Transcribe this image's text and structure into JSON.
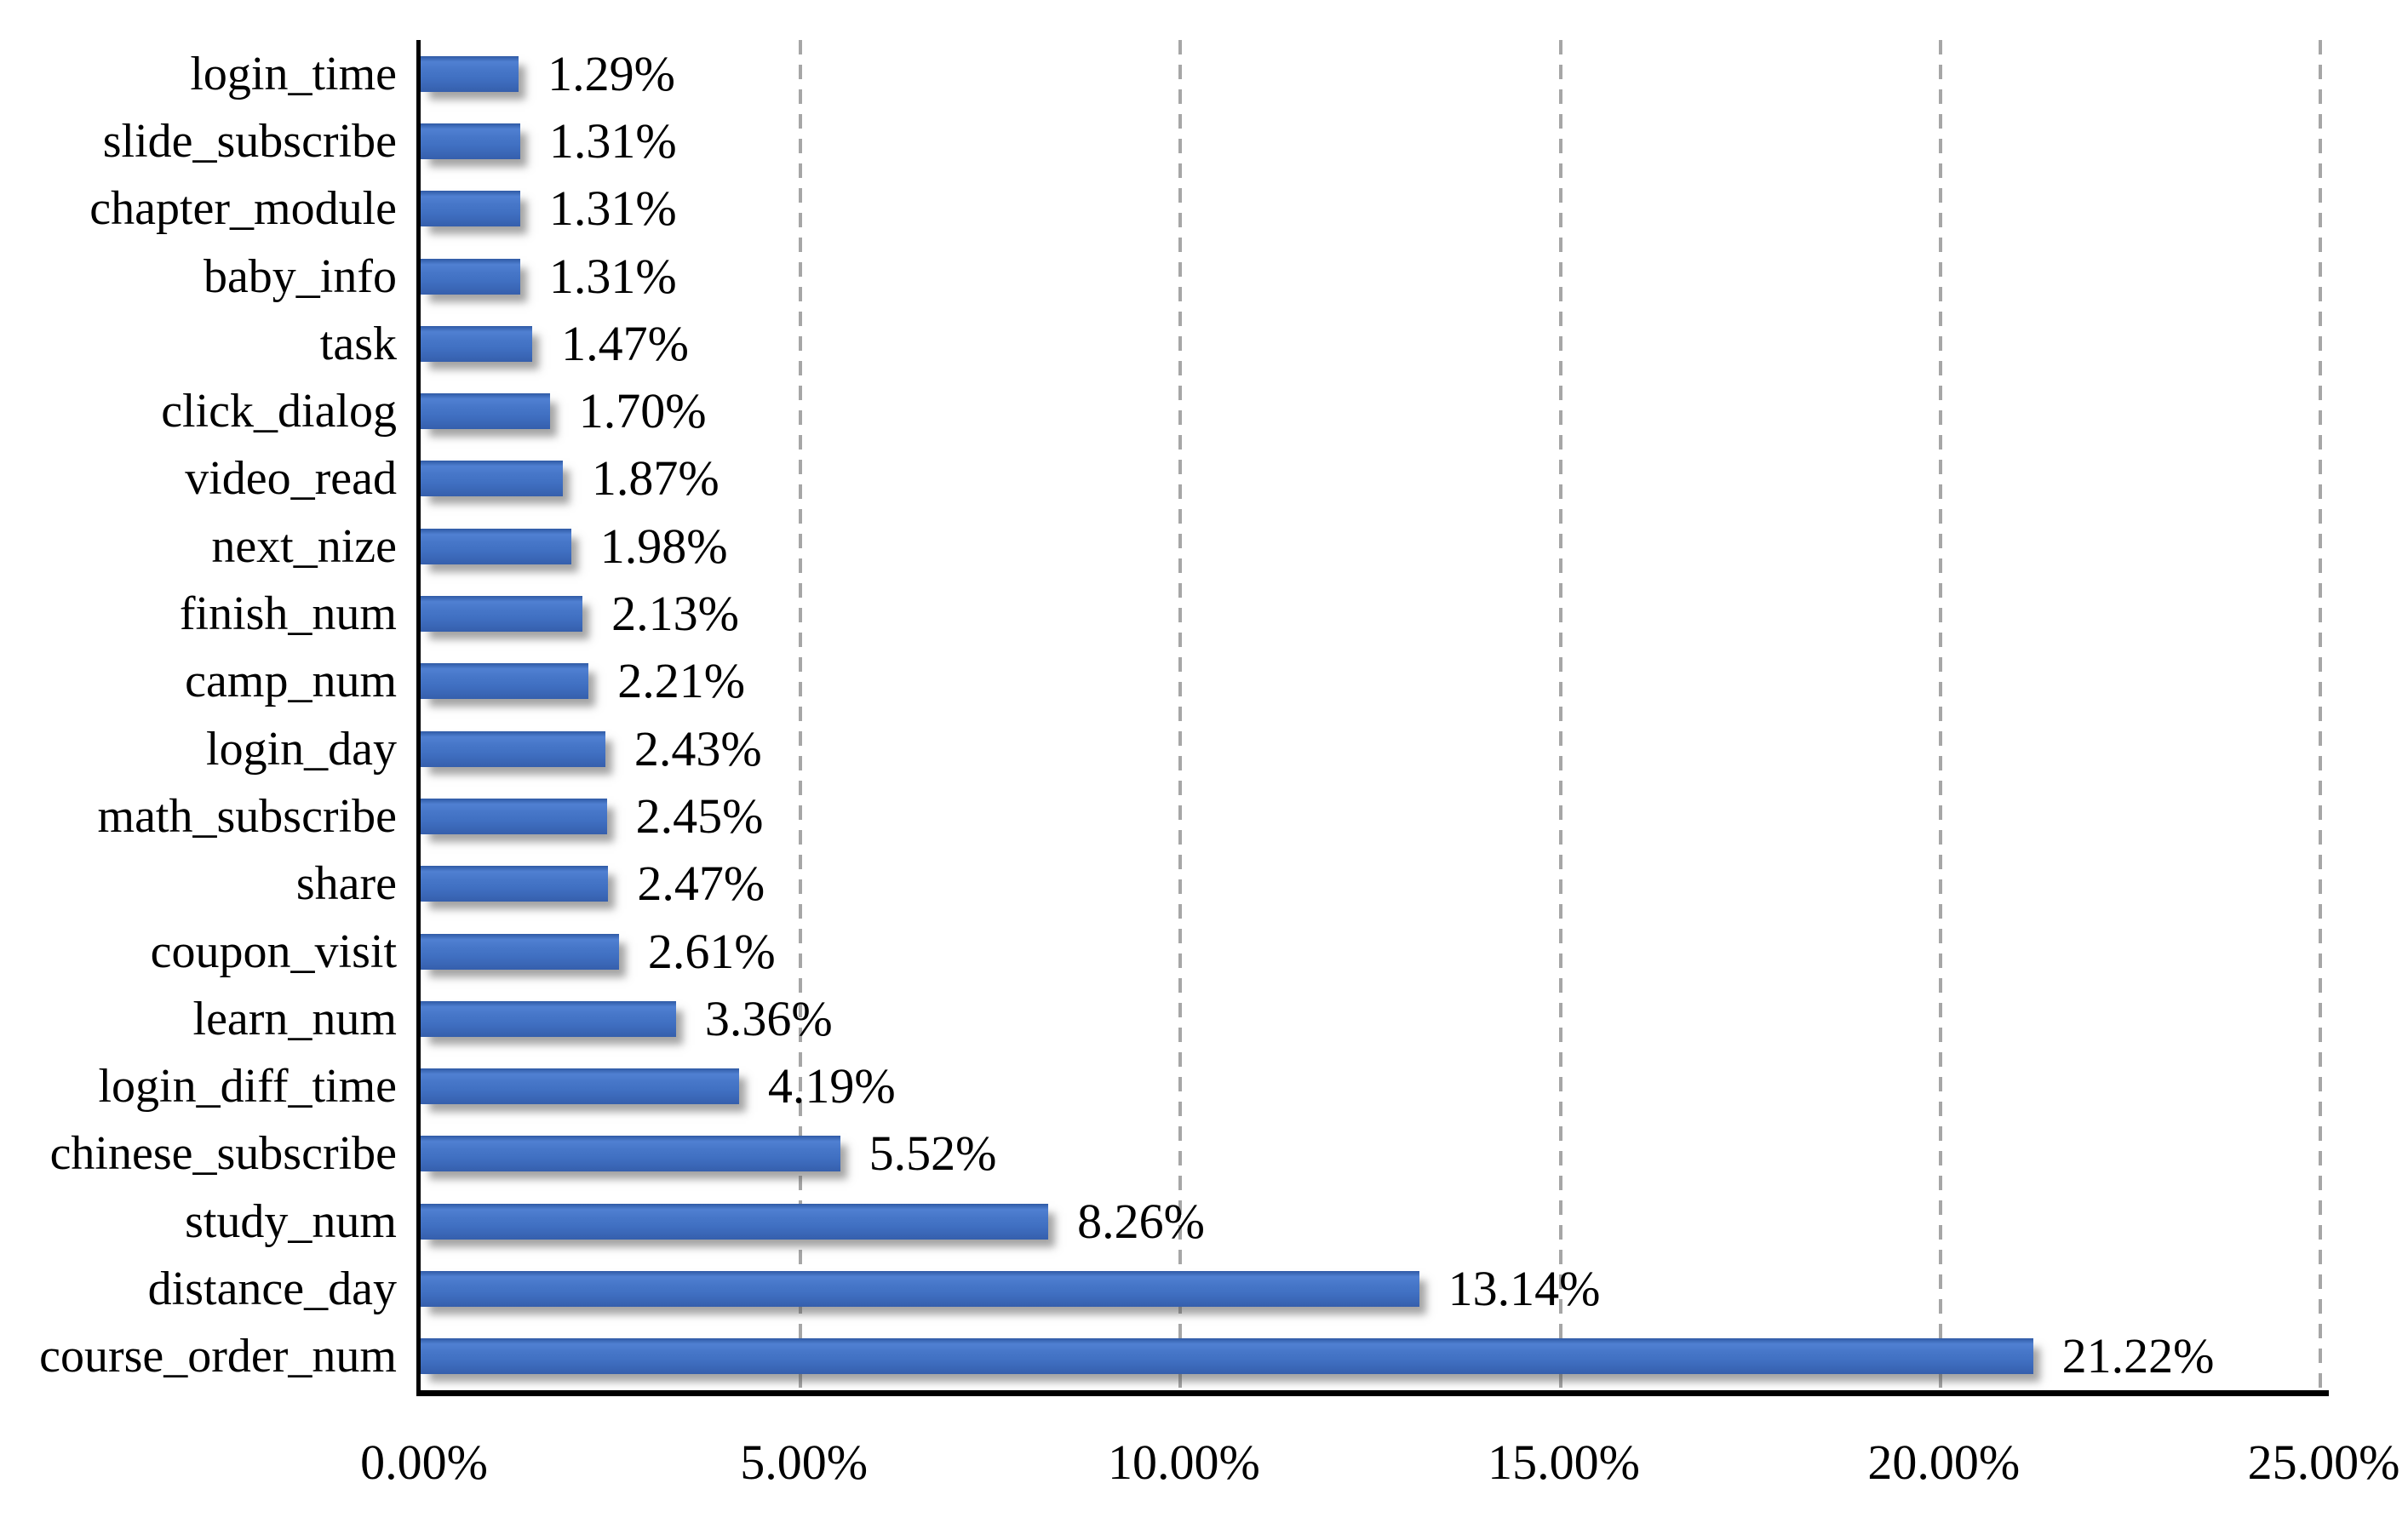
{
  "chart_data": {
    "type": "bar",
    "orientation": "horizontal",
    "title": "",
    "xlabel": "",
    "ylabel": "",
    "xlim": [
      0,
      25
    ],
    "x_tick_values": [
      0,
      5,
      10,
      15,
      20,
      25
    ],
    "x_tick_labels": [
      "0.00%",
      "5.00%",
      "10.00%",
      "15.00%",
      "20.00%",
      "25.00%"
    ],
    "grid": "vertical-dashed",
    "legend": "none",
    "bar_color": "#4472C4",
    "gridline_color": "#A6A6A6",
    "axis_color": "#000000",
    "label_color": "#000000",
    "background": "#FFFFFF",
    "bars": [
      {
        "category": "login_time",
        "value": 1.29,
        "label": "1.29%"
      },
      {
        "category": "slide_subscribe",
        "value": 1.31,
        "label": "1.31%"
      },
      {
        "category": "chapter_module",
        "value": 1.31,
        "label": "1.31%"
      },
      {
        "category": "baby_info",
        "value": 1.31,
        "label": "1.31%"
      },
      {
        "category": "task",
        "value": 1.47,
        "label": "1.47%"
      },
      {
        "category": "click_dialog",
        "value": 1.7,
        "label": "1.70%"
      },
      {
        "category": "video_read",
        "value": 1.87,
        "label": "1.87%"
      },
      {
        "category": "next_nize",
        "value": 1.98,
        "label": "1.98%"
      },
      {
        "category": "finish_num",
        "value": 2.13,
        "label": "2.13%"
      },
      {
        "category": "camp_num",
        "value": 2.21,
        "label": "2.21%"
      },
      {
        "category": "login_day",
        "value": 2.43,
        "label": "2.43%"
      },
      {
        "category": "math_subscribe",
        "value": 2.45,
        "label": "2.45%"
      },
      {
        "category": "share",
        "value": 2.47,
        "label": "2.47%"
      },
      {
        "category": "coupon_visit",
        "value": 2.61,
        "label": "2.61%"
      },
      {
        "category": "learn_num",
        "value": 3.36,
        "label": "3.36%"
      },
      {
        "category": "login_diff_time",
        "value": 4.19,
        "label": "4.19%"
      },
      {
        "category": "chinese_subscribe",
        "value": 5.52,
        "label": "5.52%"
      },
      {
        "category": "study_num",
        "value": 8.26,
        "label": "8.26%"
      },
      {
        "category": "distance_day",
        "value": 13.14,
        "label": "13.14%"
      },
      {
        "category": "course_order_num",
        "value": 21.22,
        "label": "21.22%"
      }
    ]
  }
}
